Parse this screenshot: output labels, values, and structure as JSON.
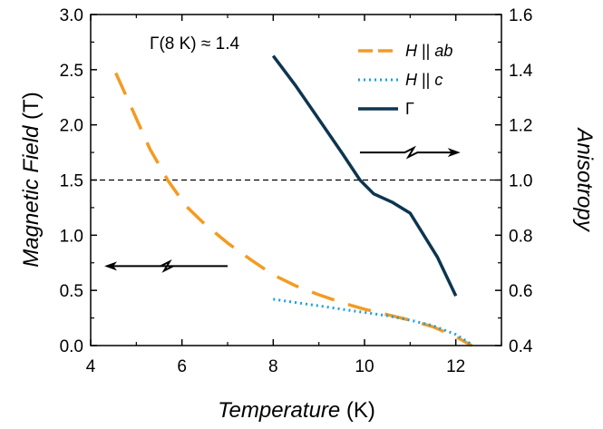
{
  "chart_data": {
    "type": "line",
    "title": "",
    "xlabel": {
      "italic": "Temperature",
      "unit": " (K)"
    },
    "ylabel_left": {
      "italic": "Magnetic Field",
      "unit": " (T)"
    },
    "ylabel_right": "Anisotropy",
    "xlim": [
      4,
      13
    ],
    "ylim_left": [
      0,
      3
    ],
    "ylim_right": [
      0.4,
      1.6
    ],
    "xticks": [
      "4",
      "6",
      "8",
      "10",
      "12"
    ],
    "xtick_values": [
      4,
      6,
      8,
      10,
      12
    ],
    "yticks_left": [
      "0.0",
      "0.5",
      "1.0",
      "1.5",
      "2.0",
      "2.5",
      "3.0"
    ],
    "ytick_left_values": [
      0,
      0.5,
      1,
      1.5,
      2,
      2.5,
      3
    ],
    "yticks_right": [
      "0.4",
      "0.6",
      "0.8",
      "1.0",
      "1.2",
      "1.4",
      "1.6"
    ],
    "ytick_right_values": [
      0.4,
      0.6,
      0.8,
      1.0,
      1.2,
      1.4,
      1.6
    ],
    "grid": false,
    "legend_position": "top-right",
    "reference_line": {
      "axis": "right",
      "y": 1.0,
      "style": "dashed",
      "color": "#000000"
    },
    "annotation": "Γ(8 K) ≈ 1.4",
    "series": [
      {
        "key": "hab",
        "name_italic": "H",
        "name_rest": " || ",
        "name_italic2": "ab",
        "axis": "left",
        "style": "dashed",
        "color": "#f39b22",
        "x": [
          4.55,
          4.9,
          5.3,
          5.7,
          6.1,
          6.5,
          7.0,
          7.5,
          8.0,
          8.5,
          9.0,
          9.5,
          10.0,
          10.5,
          11.0,
          11.5,
          12.0,
          12.35
        ],
        "y": [
          2.47,
          2.15,
          1.78,
          1.49,
          1.26,
          1.1,
          0.93,
          0.78,
          0.64,
          0.54,
          0.46,
          0.39,
          0.33,
          0.28,
          0.23,
          0.17,
          0.08,
          0.0
        ]
      },
      {
        "key": "hc",
        "name_italic": "H",
        "name_rest": " || ",
        "name_italic2": "c",
        "axis": "left",
        "style": "dotted",
        "color": "#1ea0e0",
        "x": [
          8.0,
          8.5,
          9.0,
          9.5,
          10.0,
          10.5,
          11.0,
          11.5,
          12.0,
          12.35
        ],
        "y": [
          0.42,
          0.39,
          0.36,
          0.33,
          0.3,
          0.27,
          0.23,
          0.18,
          0.1,
          0.01
        ]
      },
      {
        "key": "gamma",
        "name_italic": "",
        "name_rest": "Γ",
        "name_italic2": "",
        "axis": "right",
        "style": "solid",
        "color": "#0d3550",
        "x": [
          8.0,
          8.5,
          9.0,
          9.5,
          9.9,
          10.2,
          10.6,
          11.0,
          11.3,
          11.6,
          12.0
        ],
        "y": [
          1.45,
          1.34,
          1.22,
          1.1,
          1.0,
          0.95,
          0.92,
          0.88,
          0.8,
          0.72,
          0.58
        ]
      }
    ],
    "arrows": [
      {
        "direction": "left",
        "axis": "left",
        "x_from": 7.0,
        "x_to": 4.3,
        "y": 0.72
      },
      {
        "direction": "right",
        "axis": "right",
        "x_from": 9.9,
        "x_to": 12.1,
        "y": 1.1
      }
    ]
  }
}
